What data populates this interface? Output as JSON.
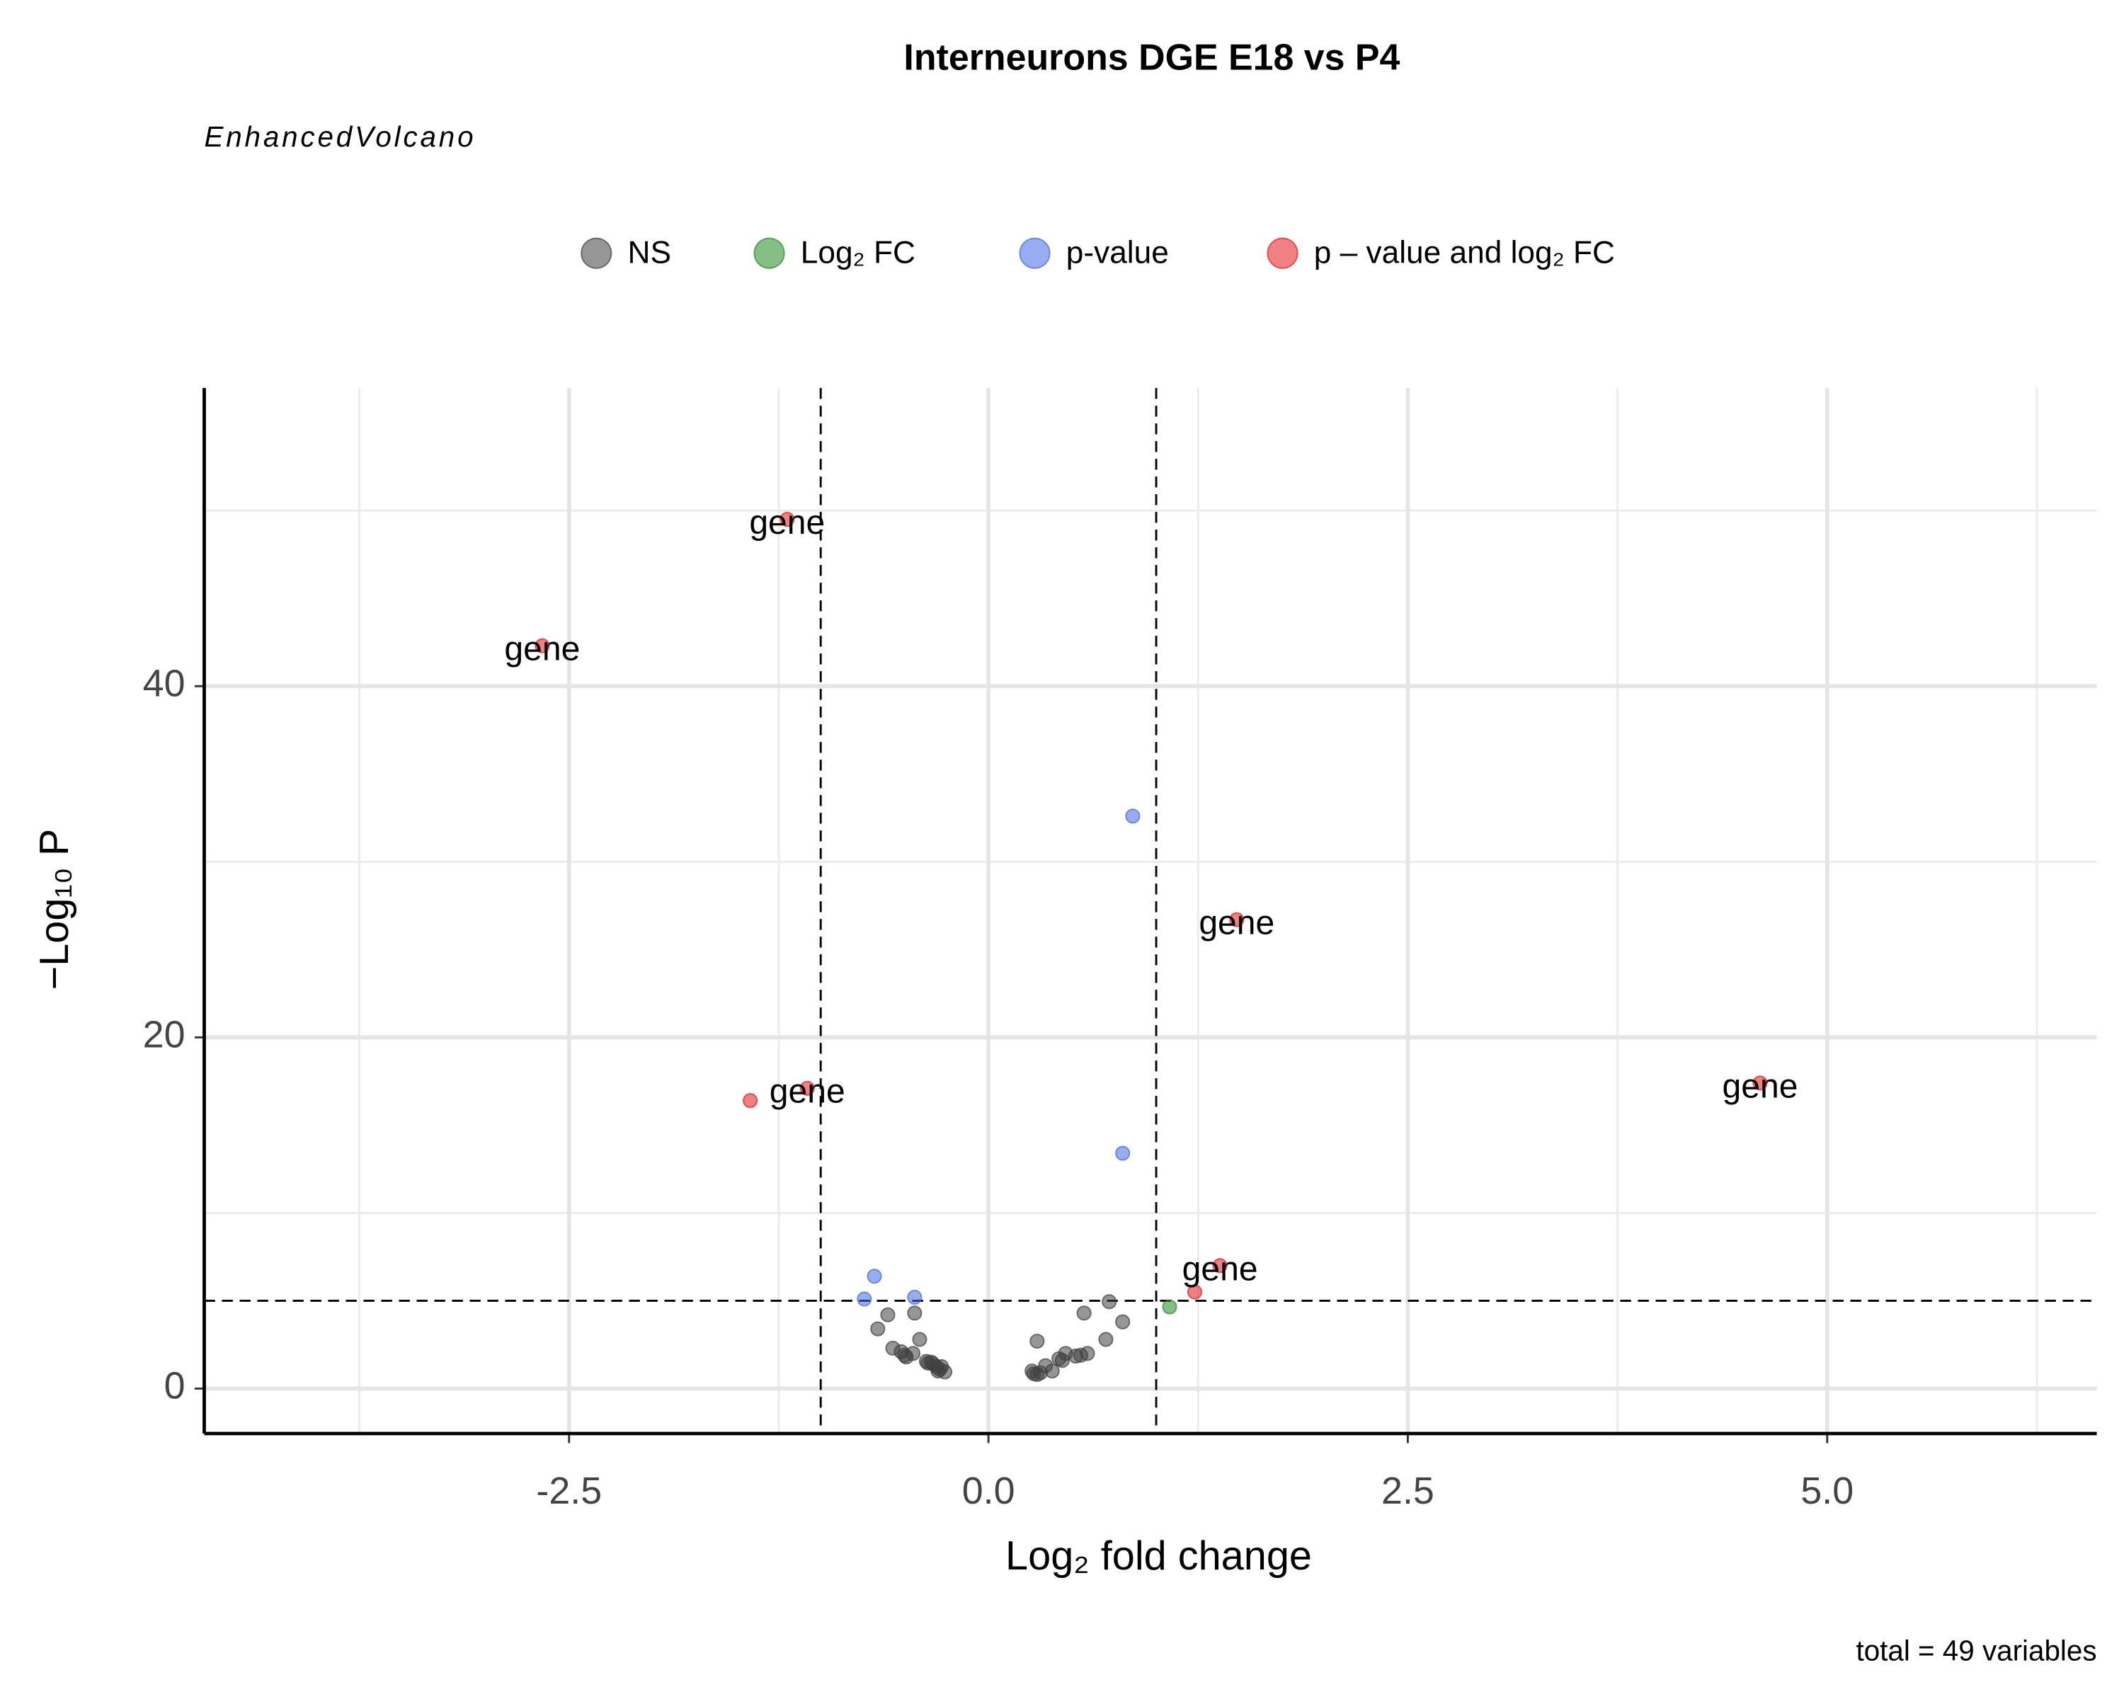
{
  "chart_data": {
    "type": "scatter",
    "title": "Interneurons DGE E18 vs P4",
    "subtitle": "EnhancedVolcano",
    "x_label": "Log₂ fold change",
    "y_label": "−Log₁₀ P",
    "caption": "total = 49 variables",
    "xlim": [
      -4.675,
      6.607
    ],
    "ylim": [
      -2.56,
      56.98
    ],
    "xticks": [
      -2.5,
      {
        "value": 0,
        "label": "0.0"
      },
      2.5,
      {
        "value": 5,
        "label": "5.0"
      }
    ],
    "yticks": [
      0,
      20,
      40
    ],
    "xminor": [
      -3.75,
      -1.25,
      1.25,
      3.75,
      6.25
    ],
    "yminor": [
      10,
      30,
      50
    ],
    "grid": true,
    "vlines": [
      -1,
      1
    ],
    "hlines": [
      5
    ],
    "legend_position": "top",
    "series": [
      {
        "name": "NS",
        "color": "#404040",
        "x": [
          -0.6,
          -0.44,
          -0.66,
          -0.41,
          -0.57,
          -0.5,
          -0.49,
          -0.37,
          -0.34,
          -0.31,
          -0.29,
          -0.26,
          -0.28,
          -0.33,
          -0.45,
          0.29,
          0.26,
          0.29,
          0.34,
          0.38,
          0.44,
          0.46,
          0.52,
          0.59,
          0.57,
          0.72,
          0.7,
          0.8,
          0.55,
          0.42,
          0.31,
          -0.3,
          -0.52,
          -0.36,
          0.27
        ],
        "y": [
          4.2,
          4.3,
          3.4,
          2.8,
          2.3,
          1.9,
          1.8,
          1.55,
          1.5,
          1.25,
          1.1,
          0.95,
          1.25,
          1.4,
          2.0,
          2.7,
          1.0,
          0.8,
          1.3,
          1.0,
          1.6,
          2.0,
          1.85,
          2.0,
          4.3,
          4.95,
          2.8,
          3.8,
          1.9,
          1.7,
          0.9,
          1.0,
          2.1,
          1.45,
          0.85
        ]
      },
      {
        "name": "Log₂ FC",
        "color": "#228b22",
        "x": [
          1.08
        ],
        "y": [
          4.65
        ]
      },
      {
        "name": "p-value",
        "color": "#4169e1",
        "x": [
          0.86,
          0.8,
          -0.68,
          -0.74,
          -0.44
        ],
        "y": [
          32.6,
          13.4,
          6.4,
          5.1,
          5.2
        ]
      },
      {
        "name": "p – value and log₂ FC",
        "color": "#e31a1c",
        "x": [
          -1.2,
          -2.66,
          1.48,
          -1.08,
          -1.42,
          4.6,
          1.38,
          1.23
        ],
        "y": [
          49.5,
          42.3,
          26.7,
          17.1,
          16.4,
          17.4,
          7.0,
          5.5
        ],
        "labels": [
          "gene",
          "gene",
          "gene",
          "gene",
          null,
          "gene",
          "gene",
          null
        ]
      }
    ]
  }
}
